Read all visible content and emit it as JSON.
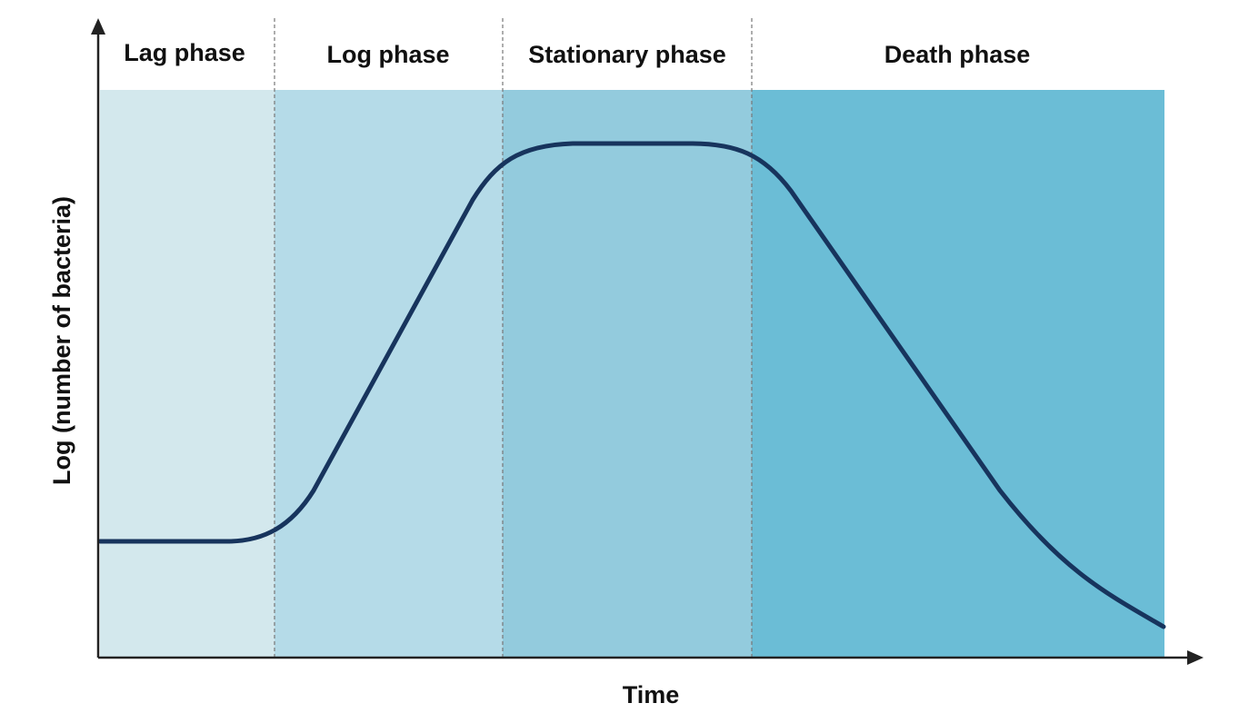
{
  "phases": [
    {
      "label": "Lag phase"
    },
    {
      "label": "Log phase"
    },
    {
      "label": "Stationary phase"
    },
    {
      "label": "Death phase"
    }
  ],
  "y_axis_label": "Log (number of bacteria)",
  "x_axis_label": "Time"
}
